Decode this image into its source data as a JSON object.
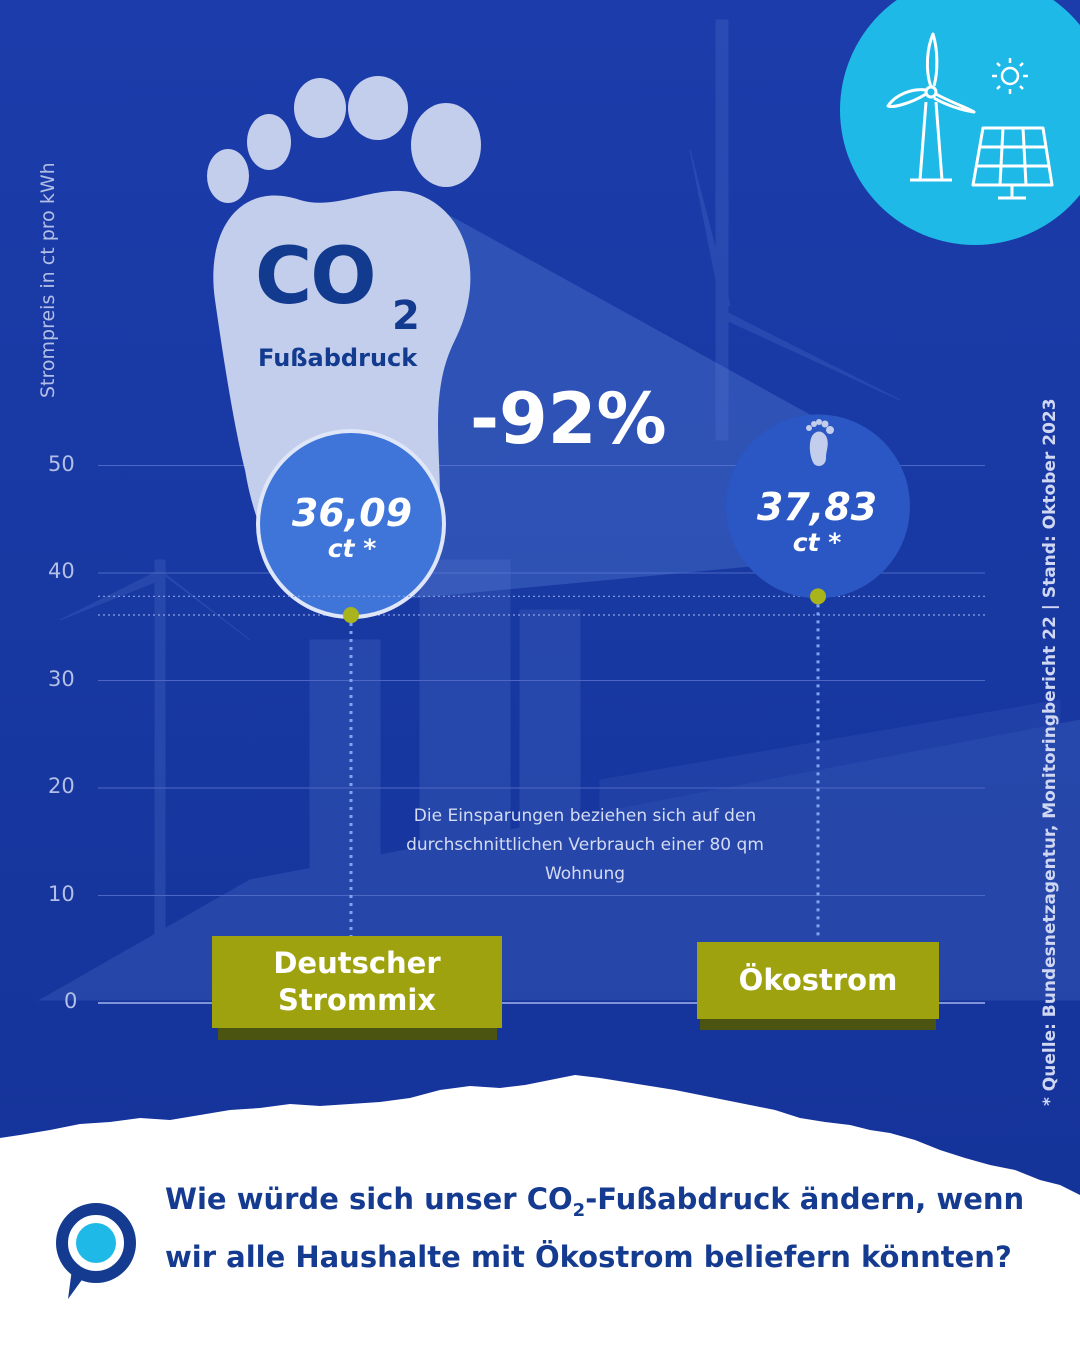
{
  "chart_data": {
    "type": "bar",
    "ylabel": "Strompreis in ct pro kWh",
    "yticks": [
      50,
      40,
      30,
      20,
      10,
      0
    ],
    "ylim": [
      0,
      55
    ],
    "grid": true,
    "categories": [
      "Deutscher Strommix",
      "Ökostrom"
    ],
    "values": [
      36.09,
      37.83
    ],
    "value_labels": [
      "36,09",
      "37,83"
    ],
    "value_unit": "ct *",
    "annotation_reduction": "-92%",
    "annotation_note": "Die Einsparungen beziehen sich auf den durchschnittlichen Verbrauch einer 80 qm Wohnung"
  },
  "footprint": {
    "co2": "CO",
    "co2_sub": "2",
    "label": "Fußabdruck"
  },
  "categories_display": {
    "left_line1": "Deutscher",
    "left_line2": "Strommix",
    "right": "Ökostrom"
  },
  "source": "* Quelle: Bundesnetzagentur, Monitoringbericht 22 | Stand: Oktober 2023",
  "question": {
    "part1": "Wie würde sich unser CO",
    "sub": "2",
    "part2": "-Fußabdruck ändern, wenn wir alle Haushalte mit Ökostrom beliefern könnten?"
  },
  "colors": {
    "background": "#1a3ba6",
    "accent_circle": "#1fb9e8",
    "category_box": "#9fa20f",
    "value_bubble": "#3a6bd0",
    "footprint": "#c3cdec",
    "text_dark_blue": "#153b90"
  },
  "icons": [
    "wind-turbine-icon",
    "sun-icon",
    "solar-panel-icon",
    "footprint-icon",
    "brand-logo-icon"
  ]
}
